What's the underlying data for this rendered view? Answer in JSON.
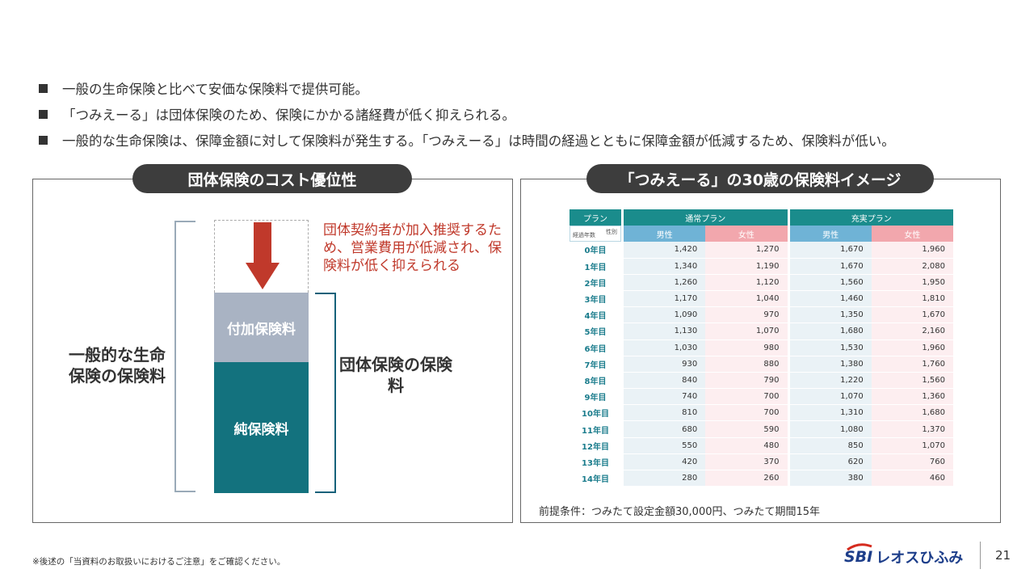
{
  "bullets": [
    "一般の生命保険と比べて安価な保険料で提供可能。",
    "「つみえーる」は団体保険のため、保険にかかる諸経費が低く抑えられる。",
    "一般的な生命保険は、保障金額に対して保険料が発生する。「つみえーる」は時間の経過とともに保障金額が低減するため、保険料が低い。"
  ],
  "left_panel": {
    "title": "団体保険のコスト優位性",
    "note": "団体契約者が加入推奨するため、営業費用が低減され、保険料が低く抑えられる",
    "segment_add": "付加保険料",
    "segment_pure": "純保険料",
    "label_general": "一般的な生命保険の保険料",
    "label_group": "団体保険の保険料",
    "arrow_color": "#c0392b"
  },
  "right_panel": {
    "title": "「つみえーる」の30歳の保険料イメージ",
    "condition": "前提条件：つみたて設定金額30,000円、つみたて期間15年",
    "table": {
      "plan_header": "プラン",
      "sex_header": "性別",
      "years_header": "経過年数",
      "plans": [
        "通常プラン",
        "充実プラン"
      ],
      "sexes": [
        "男性",
        "女性",
        "男性",
        "女性"
      ],
      "rows": [
        {
          "year": "0年目",
          "values": [
            "1,420",
            "1,270",
            "1,670",
            "1,960"
          ]
        },
        {
          "year": "1年目",
          "values": [
            "1,340",
            "1,190",
            "1,670",
            "2,080"
          ]
        },
        {
          "year": "2年目",
          "values": [
            "1,260",
            "1,120",
            "1,560",
            "1,950"
          ]
        },
        {
          "year": "3年目",
          "values": [
            "1,170",
            "1,040",
            "1,460",
            "1,810"
          ]
        },
        {
          "year": "4年目",
          "values": [
            "1,090",
            "970",
            "1,350",
            "1,670"
          ]
        },
        {
          "year": "5年目",
          "values": [
            "1,130",
            "1,070",
            "1,680",
            "2,160"
          ]
        },
        {
          "year": "6年目",
          "values": [
            "1,030",
            "980",
            "1,530",
            "1,960"
          ]
        },
        {
          "year": "7年目",
          "values": [
            "930",
            "880",
            "1,380",
            "1,760"
          ]
        },
        {
          "year": "8年目",
          "values": [
            "840",
            "790",
            "1,220",
            "1,560"
          ]
        },
        {
          "year": "9年目",
          "values": [
            "740",
            "700",
            "1,070",
            "1,360"
          ]
        },
        {
          "year": "10年目",
          "values": [
            "810",
            "700",
            "1,310",
            "1,680"
          ]
        },
        {
          "year": "11年目",
          "values": [
            "680",
            "590",
            "1,080",
            "1,370"
          ]
        },
        {
          "year": "12年目",
          "values": [
            "550",
            "480",
            "850",
            "1,070"
          ]
        },
        {
          "year": "13年目",
          "values": [
            "420",
            "370",
            "620",
            "760"
          ]
        },
        {
          "year": "14年目",
          "values": [
            "280",
            "260",
            "380",
            "460"
          ]
        }
      ]
    }
  },
  "footer": {
    "footnote": "※後述の「当資料のお取扱いにおけるご注意」をご確認ください。",
    "logo_sbi": "SBI",
    "logo_brand": "レオスひふみ",
    "page_number": "21"
  }
}
